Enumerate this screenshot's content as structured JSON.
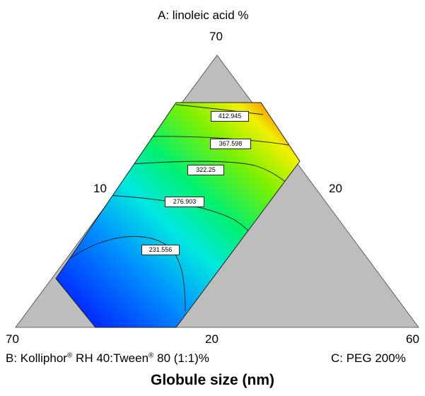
{
  "chart_data": {
    "type": "ternary-contour",
    "title": "Globule size (nm)",
    "axes": {
      "A": {
        "label": "A: linoleic acid %",
        "max_label": "70",
        "min_label": "10"
      },
      "B": {
        "label_main": "B: Kolliphor",
        "label_sup1": "®",
        "label_mid": " RH 40:Tween",
        "label_sup2": "®",
        "label_tail": " 80 (1:1)%",
        "max_label": "70",
        "min_label": "20"
      },
      "C": {
        "label": "C: PEG 200%",
        "max_label": "60",
        "min_label": "20"
      }
    },
    "contours": [
      {
        "label": "231.556",
        "value": 231.556
      },
      {
        "label": "276.903",
        "value": 276.903
      },
      {
        "label": "322.25",
        "value": 322.25
      },
      {
        "label": "367.598",
        "value": 367.598
      },
      {
        "label": "412.945",
        "value": 412.945
      }
    ],
    "colorscale": [
      "#0033ff",
      "#00d4ff",
      "#00ff66",
      "#ffff00",
      "#ff3300"
    ],
    "region_fill": "#bdbdbd"
  }
}
